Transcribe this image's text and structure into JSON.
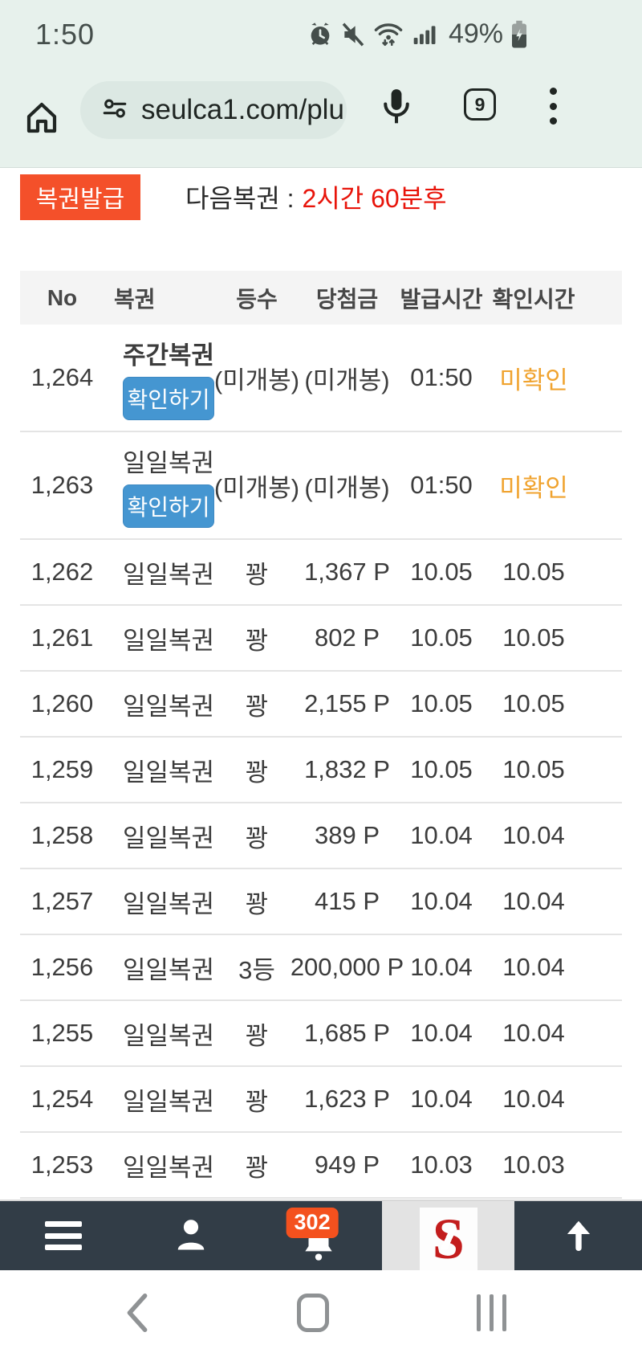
{
  "colors": {
    "chrome_bg": "#e7f1ec",
    "accent_orange": "#f4502a",
    "alert_red": "#e8140a",
    "button_blue": "#4596d1",
    "pending_orange": "#f0a32f",
    "footer_dark": "#323d47",
    "badge_orange": "#f4511e",
    "logo_red": "#c31d1d"
  },
  "status_bar": {
    "time": "1:50",
    "battery_percent": "49%",
    "icons": [
      "alarm-icon",
      "mute-icon",
      "wifi-arrows-icon",
      "signal-icon",
      "battery-charging-icon"
    ]
  },
  "browser": {
    "url": "seulca1.com/plu",
    "tab_count": "9",
    "icons": [
      "home-icon",
      "tune-icon",
      "mic-icon",
      "tab-switcher",
      "kebab-menu-icon"
    ]
  },
  "content": {
    "issue_button_label": "복권발급",
    "next_lottery_label": "다음복권 :",
    "next_lottery_value": "2시간 60분후"
  },
  "table": {
    "headers": [
      "No",
      "복권",
      "등수",
      "당첨금",
      "발급시간",
      "확인시간"
    ],
    "check_button_label": "확인하기",
    "rows": [
      {
        "no": "1,264",
        "lottery": "주간복권",
        "bold": true,
        "button": true,
        "rank": "(미개봉)",
        "prize": "(미개봉)",
        "issued": "01:50",
        "checked": "미확인",
        "pending": true
      },
      {
        "no": "1,263",
        "lottery": "일일복권",
        "bold": false,
        "button": true,
        "rank": "(미개봉)",
        "prize": "(미개봉)",
        "issued": "01:50",
        "checked": "미확인",
        "pending": true
      },
      {
        "no": "1,262",
        "lottery": "일일복권",
        "bold": false,
        "button": false,
        "rank": "꽝",
        "prize": "1,367 P",
        "issued": "10.05",
        "checked": "10.05",
        "pending": false
      },
      {
        "no": "1,261",
        "lottery": "일일복권",
        "bold": false,
        "button": false,
        "rank": "꽝",
        "prize": "802 P",
        "issued": "10.05",
        "checked": "10.05",
        "pending": false
      },
      {
        "no": "1,260",
        "lottery": "일일복권",
        "bold": false,
        "button": false,
        "rank": "꽝",
        "prize": "2,155 P",
        "issued": "10.05",
        "checked": "10.05",
        "pending": false
      },
      {
        "no": "1,259",
        "lottery": "일일복권",
        "bold": false,
        "button": false,
        "rank": "꽝",
        "prize": "1,832 P",
        "issued": "10.05",
        "checked": "10.05",
        "pending": false
      },
      {
        "no": "1,258",
        "lottery": "일일복권",
        "bold": false,
        "button": false,
        "rank": "꽝",
        "prize": "389 P",
        "issued": "10.04",
        "checked": "10.04",
        "pending": false
      },
      {
        "no": "1,257",
        "lottery": "일일복권",
        "bold": false,
        "button": false,
        "rank": "꽝",
        "prize": "415 P",
        "issued": "10.04",
        "checked": "10.04",
        "pending": false
      },
      {
        "no": "1,256",
        "lottery": "일일복권",
        "bold": false,
        "button": false,
        "rank": "3등",
        "prize": "200,000 P",
        "issued": "10.04",
        "checked": "10.04",
        "pending": false
      },
      {
        "no": "1,255",
        "lottery": "일일복권",
        "bold": false,
        "button": false,
        "rank": "꽝",
        "prize": "1,685 P",
        "issued": "10.04",
        "checked": "10.04",
        "pending": false
      },
      {
        "no": "1,254",
        "lottery": "일일복권",
        "bold": false,
        "button": false,
        "rank": "꽝",
        "prize": "1,623 P",
        "issued": "10.04",
        "checked": "10.04",
        "pending": false
      },
      {
        "no": "1,253",
        "lottery": "일일복권",
        "bold": false,
        "button": false,
        "rank": "꽝",
        "prize": "949 P",
        "issued": "10.03",
        "checked": "10.03",
        "pending": false
      }
    ]
  },
  "footer": {
    "notification_count": "302",
    "logo_letter": "S",
    "icons": [
      "menu-icon",
      "person-icon",
      "bell-icon",
      "site-logo",
      "scroll-top-icon"
    ]
  },
  "android_nav": {
    "icons": [
      "back-icon",
      "home-nav-icon",
      "recents-icon"
    ]
  }
}
